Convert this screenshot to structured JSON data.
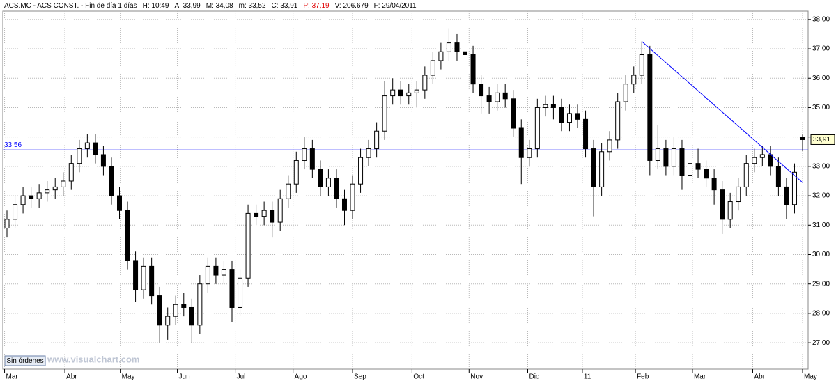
{
  "header": {
    "symbol": "ACS.MC - ACS CONST. - Fin de día 1 días",
    "fields": [
      "H: 10:49",
      "A: 33,99",
      "M: 34,08",
      "m: 33,52",
      "C: 33,91"
    ],
    "previous": "P: 37,19",
    "tail": [
      "V: 206.679",
      "F: 29/04/2011"
    ]
  },
  "status_button": "Sin órdenes",
  "watermark": "www.visualchart.com",
  "chart_data": {
    "type": "candlestick",
    "up_color": "#ffffff",
    "down_color": "#000000",
    "ylim": [
      26.15,
      38.47
    ],
    "yticks": [
      {
        "value": 27,
        "label": "27,00"
      },
      {
        "value": 28,
        "label": "28,00"
      },
      {
        "value": 29,
        "label": "29,00"
      },
      {
        "value": 30,
        "label": "30,00"
      },
      {
        "value": 31,
        "label": "31,00"
      },
      {
        "value": 32,
        "label": "32,00"
      },
      {
        "value": 33,
        "label": "33,00"
      },
      {
        "value": 34,
        "label": "34,00"
      },
      {
        "value": 35,
        "label": "35,00"
      },
      {
        "value": 36,
        "label": "36,00"
      },
      {
        "value": 37,
        "label": "37,00"
      },
      {
        "value": 38,
        "label": "38,00"
      }
    ],
    "xticks": [
      {
        "value": -0.3,
        "label": "Mar"
      },
      {
        "value": 7.2,
        "label": "Abr"
      },
      {
        "value": 14.1,
        "label": "May"
      },
      {
        "value": 21.2,
        "label": "Jun"
      },
      {
        "value": 28.4,
        "label": "Jul"
      },
      {
        "value": 35.6,
        "label": "Ago"
      },
      {
        "value": 43.0,
        "label": "Sep"
      },
      {
        "value": 50.4,
        "label": "Oct"
      },
      {
        "value": 57.5,
        "label": "Nov"
      },
      {
        "value": 64.8,
        "label": "Dic"
      },
      {
        "value": 71.6,
        "label": "11"
      },
      {
        "value": 78.2,
        "label": "Feb"
      },
      {
        "value": 85.3,
        "label": "Mar"
      },
      {
        "value": 92.8,
        "label": "Abr"
      },
      {
        "value": 99.0,
        "label": "May"
      }
    ],
    "xlim": [
      -0.5,
      99.5
    ],
    "open": [
      30.9,
      31.2,
      31.7,
      32.0,
      31.9,
      32.1,
      32.2,
      32.3,
      32.5,
      33.1,
      33.6,
      33.8,
      33.4,
      33.0,
      32.0,
      31.5,
      29.8,
      28.8,
      29.6,
      28.6,
      27.6,
      27.9,
      28.3,
      28.2,
      27.6,
      29.0,
      29.6,
      29.3,
      29.5,
      28.2,
      29.2,
      31.4,
      31.3,
      31.5,
      31.1,
      31.9,
      32.4,
      33.2,
      33.6,
      32.9,
      32.3,
      32.6,
      31.9,
      31.5,
      32.4,
      33.3,
      33.6,
      34.2,
      35.4,
      35.6,
      35.4,
      35.5,
      35.6,
      36.1,
      36.6,
      36.9,
      37.2,
      36.9,
      36.8,
      35.8,
      35.4,
      35.2,
      35.5,
      35.3,
      34.3,
      33.3,
      33.6,
      35.0,
      35.1,
      35.0,
      34.5,
      34.8,
      34.6,
      33.6,
      32.3,
      33.5,
      33.9,
      35.2,
      35.8,
      36.1,
      36.8,
      33.2,
      33.6,
      33.0,
      33.6,
      32.7,
      33.1,
      32.9,
      32.6,
      32.2,
      31.2,
      31.8,
      32.3,
      33.1,
      33.3,
      33.4,
      33.0,
      32.3,
      31.7,
      33.99
    ],
    "high": [
      31.5,
      32.0,
      32.3,
      32.3,
      32.4,
      32.5,
      32.6,
      32.8,
      33.4,
      33.9,
      34.1,
      34.1,
      33.7,
      33.3,
      32.3,
      31.8,
      30.1,
      29.9,
      29.9,
      28.9,
      28.2,
      28.6,
      28.7,
      28.5,
      29.3,
      29.9,
      29.9,
      29.8,
      29.8,
      29.5,
      31.7,
      31.7,
      31.8,
      31.8,
      32.2,
      32.7,
      33.5,
      34.0,
      33.9,
      33.2,
      32.9,
      32.9,
      32.2,
      32.7,
      33.6,
      33.9,
      34.5,
      35.9,
      36.0,
      35.9,
      35.8,
      35.9,
      36.4,
      36.9,
      37.2,
      37.7,
      37.5,
      37.2,
      37.1,
      36.1,
      35.7,
      35.8,
      35.8,
      35.6,
      34.6,
      33.9,
      35.3,
      35.4,
      35.4,
      35.3,
      35.1,
      35.1,
      34.9,
      33.9,
      33.8,
      34.2,
      35.5,
      36.1,
      36.4,
      37.25,
      37.1,
      34.4,
      33.9,
      34.0,
      33.9,
      33.4,
      33.6,
      33.2,
      32.9,
      32.5,
      32.1,
      32.6,
      33.4,
      33.6,
      33.7,
      33.7,
      33.3,
      32.6,
      33.1,
      34.08
    ],
    "low": [
      30.6,
      30.9,
      31.4,
      31.6,
      31.6,
      31.8,
      31.9,
      32.0,
      32.2,
      32.8,
      33.3,
      33.1,
      32.7,
      31.7,
      31.2,
      29.5,
      28.4,
      28.5,
      28.3,
      27.0,
      27.1,
      27.6,
      27.9,
      27.0,
      27.3,
      28.7,
      29.0,
      29.0,
      27.7,
      27.9,
      28.9,
      31.0,
      31.0,
      30.6,
      30.8,
      31.6,
      32.1,
      32.9,
      32.6,
      32.0,
      32.0,
      31.6,
      31.0,
      31.2,
      32.1,
      33.0,
      33.3,
      33.9,
      35.1,
      35.1,
      35.1,
      35.0,
      35.3,
      35.8,
      36.3,
      36.6,
      36.6,
      36.4,
      35.5,
      34.8,
      34.8,
      34.9,
      35.0,
      34.0,
      32.4,
      33.0,
      33.3,
      34.7,
      34.6,
      34.2,
      34.2,
      34.3,
      33.3,
      31.3,
      32.0,
      33.2,
      33.6,
      34.9,
      35.5,
      35.8,
      32.7,
      32.9,
      32.7,
      32.7,
      32.2,
      32.4,
      32.6,
      32.3,
      31.7,
      30.7,
      30.9,
      31.5,
      32.0,
      32.8,
      33.0,
      32.7,
      32.0,
      31.2,
      31.4,
      33.52
    ],
    "close": [
      31.2,
      31.7,
      32.0,
      31.9,
      32.1,
      32.2,
      32.3,
      32.5,
      33.1,
      33.6,
      33.8,
      33.4,
      33.0,
      32.0,
      31.5,
      29.8,
      28.8,
      29.6,
      28.6,
      27.6,
      27.9,
      28.3,
      28.2,
      27.6,
      29.0,
      29.6,
      29.3,
      29.5,
      28.2,
      29.2,
      31.4,
      31.3,
      31.5,
      31.1,
      31.9,
      32.4,
      33.2,
      33.6,
      32.9,
      32.3,
      32.6,
      31.9,
      31.5,
      32.4,
      33.3,
      33.6,
      34.2,
      35.4,
      35.6,
      35.4,
      35.5,
      35.6,
      36.1,
      36.6,
      36.9,
      37.2,
      36.9,
      36.8,
      35.8,
      35.4,
      35.2,
      35.5,
      35.3,
      34.3,
      33.3,
      33.6,
      35.0,
      35.1,
      35.0,
      34.5,
      34.8,
      34.6,
      33.6,
      32.3,
      33.5,
      33.9,
      35.2,
      35.8,
      36.1,
      36.8,
      33.2,
      33.6,
      33.0,
      33.6,
      32.7,
      33.1,
      32.9,
      32.6,
      32.2,
      31.2,
      31.8,
      32.3,
      33.1,
      33.3,
      33.4,
      33.0,
      32.3,
      31.7,
      32.8,
      33.91
    ],
    "hline": {
      "value": 33.56,
      "label": "33.56",
      "color": "#0000ff"
    },
    "trendline": {
      "x": [
        79,
        99
      ],
      "y": [
        37.25,
        32.45
      ],
      "color": "#0000ff"
    },
    "last_label": {
      "value": 33.91,
      "label": "33,91"
    }
  }
}
